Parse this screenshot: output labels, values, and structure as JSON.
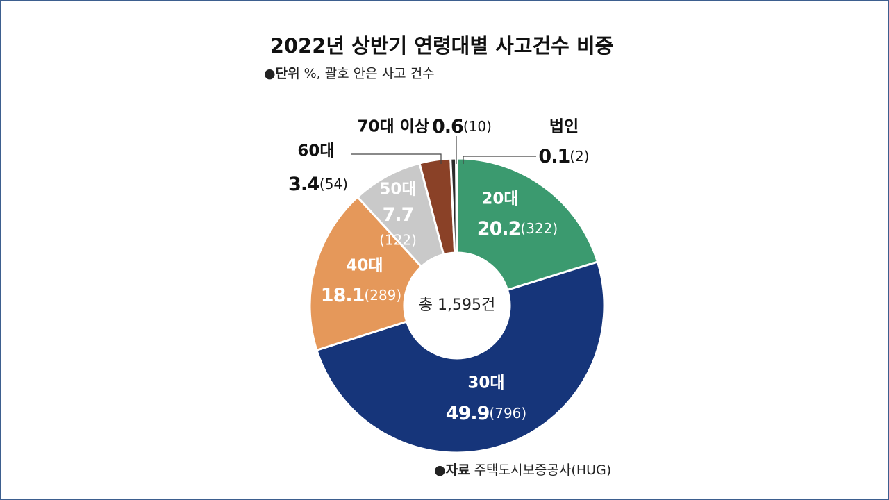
{
  "chart_data": {
    "type": "donut",
    "title": "2022년 상반기 연령대별 사고건수 비중",
    "unit_label": "단위",
    "unit_text": "%, 괄호 안은 사고 건수",
    "source_label": "자료",
    "source_text": "주택도시보증공사(HUG)",
    "total_label": "총 1,595건",
    "categories": [
      "20대",
      "30대",
      "40대",
      "50대",
      "60대",
      "70대 이상",
      "법인"
    ],
    "values": [
      20.2,
      49.9,
      18.1,
      7.7,
      3.4,
      0.6,
      0.1
    ],
    "counts": [
      "(322)",
      "(796)",
      "(289)",
      "(122)",
      "(54)",
      "(10)",
      "(2)"
    ],
    "colors": [
      "#3b9a6f",
      "#16357a",
      "#e5985a",
      "#c9c9c9",
      "#8a4127",
      "#2b2b2b",
      "#1b2c55"
    ]
  }
}
